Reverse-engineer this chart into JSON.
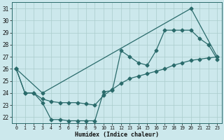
{
  "title": "",
  "xlabel": "Humidex (Indice chaleur)",
  "bg_color": "#cce8ec",
  "line_color": "#2a6b6b",
  "grid_color": "#aacccc",
  "xlim": [
    -0.5,
    23.5
  ],
  "ylim": [
    21.5,
    31.5
  ],
  "yticks": [
    22,
    23,
    24,
    25,
    26,
    27,
    28,
    29,
    30,
    31
  ],
  "xticks": [
    0,
    1,
    2,
    3,
    4,
    5,
    6,
    7,
    8,
    9,
    10,
    11,
    12,
    13,
    14,
    15,
    16,
    17,
    18,
    19,
    20,
    21,
    22,
    23
  ],
  "line_upper": {
    "x": [
      0,
      3,
      20,
      23
    ],
    "y": [
      26,
      24,
      31,
      27
    ]
  },
  "line_mid": {
    "x": [
      0,
      1,
      2,
      3,
      4,
      5,
      6,
      7,
      8,
      9,
      10,
      11,
      12,
      13,
      14,
      15,
      16,
      17,
      18,
      19,
      20,
      21,
      22,
      23
    ],
    "y": [
      26,
      24,
      24,
      23.5,
      23.3,
      23.2,
      23.2,
      23.2,
      23.1,
      23.0,
      23.8,
      24.3,
      24.8,
      25.2,
      25.4,
      25.6,
      25.8,
      26.0,
      26.3,
      26.5,
      26.7,
      26.8,
      26.9,
      27.0
    ]
  },
  "line_detail": {
    "x": [
      0,
      1,
      2,
      3,
      4,
      5,
      6,
      7,
      8,
      9,
      10,
      11,
      12,
      13,
      14,
      15,
      16,
      17,
      18,
      19,
      20,
      21,
      22,
      23
    ],
    "y": [
      26,
      24,
      24,
      23.2,
      21.8,
      21.8,
      21.7,
      21.7,
      21.7,
      21.7,
      24.1,
      24.2,
      27.5,
      27.0,
      26.5,
      26.3,
      27.5,
      29.2,
      29.2,
      29.2,
      29.2,
      28.5,
      28.0,
      26.8
    ]
  }
}
